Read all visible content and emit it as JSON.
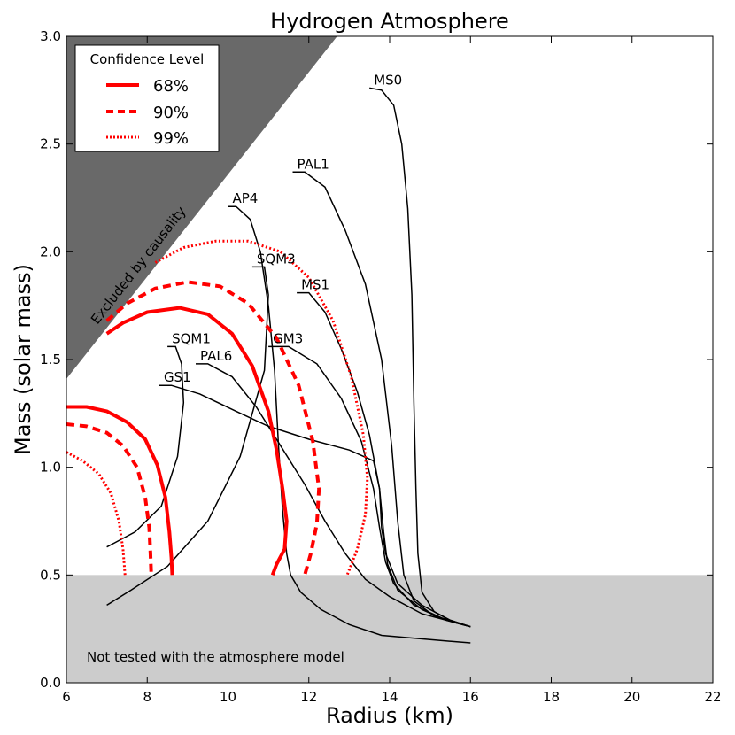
{
  "chart_data": {
    "type": "line",
    "title": "Hydrogen Atmosphere",
    "xlabel": "Radius (km)",
    "ylabel": "Mass (solar mass)",
    "xlim": [
      6,
      22
    ],
    "ylim": [
      0.0,
      3.0
    ],
    "xticks": [
      6,
      8,
      10,
      12,
      14,
      16,
      18,
      20,
      22
    ],
    "yticks": [
      0.0,
      0.5,
      1.0,
      1.5,
      2.0,
      2.5,
      3.0
    ],
    "grid": false,
    "legend": {
      "title": "Confidence Level",
      "position": "top-left",
      "entries": [
        {
          "label": "68%",
          "style": "solid"
        },
        {
          "label": "90%",
          "style": "dashed"
        },
        {
          "label": "99%",
          "style": "dotted"
        }
      ]
    },
    "regions": {
      "causality_label": "Excluded by causality",
      "causality_polygon": [
        [
          6,
          1.41
        ],
        [
          6,
          3.0
        ],
        [
          12.7,
          3.0
        ]
      ],
      "untested_label": "Not tested with the atmosphere model",
      "untested_ymax": 0.5
    },
    "colors": {
      "contour": "#ff0000",
      "eos": "#000000",
      "causality": "#696969",
      "untested": "#cccccc"
    },
    "eos_curves": [
      {
        "label": "MS0",
        "points": [
          [
            13.5,
            2.76
          ],
          [
            13.8,
            2.75
          ],
          [
            14.1,
            2.68
          ],
          [
            14.3,
            2.5
          ],
          [
            14.45,
            2.2
          ],
          [
            14.55,
            1.8
          ],
          [
            14.6,
            1.3
          ],
          [
            14.65,
            0.9
          ],
          [
            14.7,
            0.6
          ],
          [
            14.8,
            0.42
          ],
          [
            15.1,
            0.33
          ],
          [
            15.5,
            0.29
          ],
          [
            16.0,
            0.26
          ]
        ]
      },
      {
        "label": "PAL1",
        "points": [
          [
            11.6,
            2.37
          ],
          [
            11.9,
            2.37
          ],
          [
            12.4,
            2.3
          ],
          [
            12.9,
            2.1
          ],
          [
            13.4,
            1.85
          ],
          [
            13.8,
            1.5
          ],
          [
            14.05,
            1.1
          ],
          [
            14.2,
            0.75
          ],
          [
            14.35,
            0.5
          ],
          [
            14.6,
            0.38
          ],
          [
            15.1,
            0.31
          ],
          [
            15.6,
            0.28
          ],
          [
            16.0,
            0.26
          ]
        ]
      },
      {
        "label": "AP4",
        "points": [
          [
            10.0,
            2.21
          ],
          [
            10.2,
            2.21
          ],
          [
            10.55,
            2.15
          ],
          [
            10.8,
            2.0
          ],
          [
            11.0,
            1.75
          ],
          [
            11.15,
            1.45
          ],
          [
            11.25,
            1.1
          ],
          [
            11.35,
            0.8
          ],
          [
            11.45,
            0.6
          ],
          [
            11.55,
            0.5
          ],
          [
            11.8,
            0.42
          ],
          [
            12.3,
            0.34
          ],
          [
            13.0,
            0.27
          ],
          [
            13.8,
            0.22
          ],
          [
            15.0,
            0.2
          ],
          [
            16.0,
            0.185
          ]
        ]
      },
      {
        "label": "SQM3",
        "points": [
          [
            10.6,
            1.93
          ],
          [
            10.9,
            1.93
          ],
          [
            11.0,
            1.8
          ],
          [
            10.9,
            1.45
          ],
          [
            10.3,
            1.05
          ],
          [
            9.5,
            0.75
          ],
          [
            8.5,
            0.54
          ],
          [
            7.6,
            0.43
          ],
          [
            7.0,
            0.36
          ]
        ]
      },
      {
        "label": "MS1",
        "points": [
          [
            11.7,
            1.81
          ],
          [
            12.0,
            1.81
          ],
          [
            12.4,
            1.72
          ],
          [
            12.8,
            1.55
          ],
          [
            13.2,
            1.35
          ],
          [
            13.5,
            1.15
          ],
          [
            13.75,
            0.9
          ],
          [
            13.85,
            0.7
          ],
          [
            13.95,
            0.55
          ],
          [
            14.2,
            0.43
          ],
          [
            14.8,
            0.34
          ],
          [
            15.4,
            0.29
          ],
          [
            16.0,
            0.26
          ]
        ]
      },
      {
        "label": "GM3",
        "points": [
          [
            11.0,
            1.56
          ],
          [
            11.5,
            1.56
          ],
          [
            12.2,
            1.48
          ],
          [
            12.8,
            1.32
          ],
          [
            13.3,
            1.12
          ],
          [
            13.6,
            0.9
          ],
          [
            13.75,
            0.72
          ],
          [
            13.9,
            0.56
          ],
          [
            14.1,
            0.46
          ],
          [
            14.6,
            0.36
          ],
          [
            15.3,
            0.3
          ],
          [
            16.0,
            0.26
          ]
        ]
      },
      {
        "label": "SQM1",
        "points": [
          [
            8.5,
            1.56
          ],
          [
            8.7,
            1.56
          ],
          [
            8.85,
            1.48
          ],
          [
            8.9,
            1.3
          ],
          [
            8.75,
            1.05
          ],
          [
            8.35,
            0.82
          ],
          [
            7.7,
            0.7
          ],
          [
            7.0,
            0.63
          ]
        ]
      },
      {
        "label": "PAL6",
        "points": [
          [
            9.2,
            1.48
          ],
          [
            9.5,
            1.48
          ],
          [
            10.1,
            1.42
          ],
          [
            10.7,
            1.28
          ],
          [
            11.3,
            1.1
          ],
          [
            11.9,
            0.92
          ],
          [
            12.4,
            0.75
          ],
          [
            12.9,
            0.6
          ],
          [
            13.4,
            0.48
          ],
          [
            14.0,
            0.4
          ],
          [
            14.8,
            0.32
          ],
          [
            16.0,
            0.26
          ]
        ]
      },
      {
        "label": "GS1",
        "points": [
          [
            8.3,
            1.38
          ],
          [
            8.6,
            1.38
          ],
          [
            9.3,
            1.34
          ],
          [
            10.2,
            1.26
          ],
          [
            11.0,
            1.19
          ],
          [
            12.0,
            1.13
          ],
          [
            13.0,
            1.08
          ],
          [
            13.6,
            1.03
          ],
          [
            13.75,
            0.9
          ],
          [
            13.8,
            0.72
          ],
          [
            13.9,
            0.6
          ],
          [
            14.2,
            0.46
          ],
          [
            14.8,
            0.36
          ],
          [
            15.5,
            0.29
          ],
          [
            16.0,
            0.26
          ]
        ]
      }
    ],
    "contours": [
      {
        "level": "68%",
        "style": "solid",
        "points": [
          [
            7.0,
            1.62
          ],
          [
            7.4,
            1.67
          ],
          [
            8.0,
            1.72
          ],
          [
            8.8,
            1.74
          ],
          [
            9.5,
            1.71
          ],
          [
            10.1,
            1.62
          ],
          [
            10.6,
            1.47
          ],
          [
            11.0,
            1.26
          ],
          [
            11.2,
            1.08
          ],
          [
            11.35,
            0.9
          ],
          [
            11.45,
            0.75
          ],
          [
            11.4,
            0.62
          ],
          [
            11.2,
            0.55
          ],
          [
            11.1,
            0.5
          ]
        ]
      },
      {
        "level": "68%",
        "style": "solid",
        "points": [
          [
            6.0,
            1.28
          ],
          [
            6.5,
            1.28
          ],
          [
            7.0,
            1.26
          ],
          [
            7.5,
            1.21
          ],
          [
            7.95,
            1.13
          ],
          [
            8.25,
            1.01
          ],
          [
            8.45,
            0.86
          ],
          [
            8.55,
            0.7
          ],
          [
            8.6,
            0.58
          ],
          [
            8.62,
            0.5
          ]
        ]
      },
      {
        "level": "90%",
        "style": "dashed",
        "points": [
          [
            7.0,
            1.68
          ],
          [
            7.5,
            1.76
          ],
          [
            8.2,
            1.83
          ],
          [
            9.0,
            1.86
          ],
          [
            9.8,
            1.84
          ],
          [
            10.5,
            1.76
          ],
          [
            11.2,
            1.6
          ],
          [
            11.75,
            1.38
          ],
          [
            12.1,
            1.12
          ],
          [
            12.25,
            0.9
          ],
          [
            12.2,
            0.74
          ],
          [
            12.05,
            0.6
          ],
          [
            11.9,
            0.5
          ]
        ]
      },
      {
        "level": "90%",
        "style": "dashed",
        "points": [
          [
            6.0,
            1.2
          ],
          [
            6.5,
            1.19
          ],
          [
            7.0,
            1.16
          ],
          [
            7.4,
            1.1
          ],
          [
            7.75,
            1.0
          ],
          [
            7.95,
            0.86
          ],
          [
            8.05,
            0.72
          ],
          [
            8.08,
            0.6
          ],
          [
            8.1,
            0.5
          ]
        ]
      },
      {
        "level": "99%",
        "style": "dotted",
        "points": [
          [
            8.2,
            1.95
          ],
          [
            8.9,
            2.02
          ],
          [
            9.7,
            2.05
          ],
          [
            10.5,
            2.05
          ],
          [
            11.3,
            2.0
          ],
          [
            12.0,
            1.88
          ],
          [
            12.6,
            1.68
          ],
          [
            13.05,
            1.42
          ],
          [
            13.35,
            1.15
          ],
          [
            13.45,
            0.95
          ],
          [
            13.4,
            0.78
          ],
          [
            13.2,
            0.62
          ],
          [
            12.95,
            0.5
          ]
        ]
      },
      {
        "level": "99%",
        "style": "dotted",
        "points": [
          [
            6.0,
            1.07
          ],
          [
            6.4,
            1.03
          ],
          [
            6.8,
            0.97
          ],
          [
            7.1,
            0.88
          ],
          [
            7.3,
            0.75
          ],
          [
            7.4,
            0.62
          ],
          [
            7.45,
            0.5
          ]
        ]
      }
    ]
  }
}
